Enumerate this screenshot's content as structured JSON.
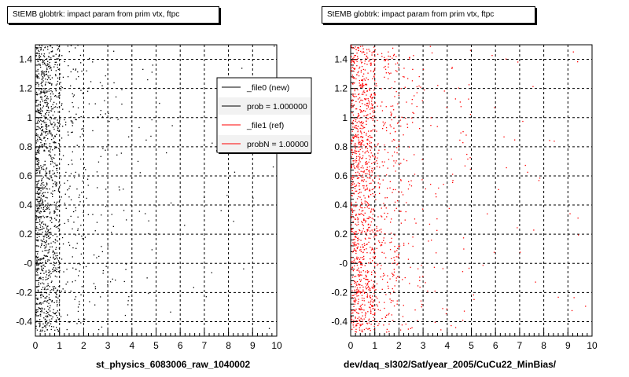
{
  "chart_data": [
    {
      "type": "scatter",
      "title": "StEMB globtrk: impact param from prim vtx, ftpc",
      "xlabel": "st_physics_6083006_raw_1040002",
      "ylabel": "",
      "xlim": [
        0,
        10
      ],
      "ylim": [
        -0.5,
        1.5
      ],
      "xticks": [
        "0",
        "1",
        "2",
        "3",
        "4",
        "5",
        "6",
        "7",
        "8",
        "9",
        "10"
      ],
      "yticks": [
        "-0.4",
        "-0.2",
        "-0",
        "0.2",
        "0.4",
        "0.6",
        "0.8",
        "1",
        "1.2",
        "1.4"
      ],
      "grid": true,
      "marker_color": "#000000",
      "density_profile": [
        {
          "x_range": [
            0,
            0.5
          ],
          "weight": 46
        },
        {
          "x_range": [
            0.5,
            1
          ],
          "weight": 30
        },
        {
          "x_range": [
            1,
            2
          ],
          "weight": 12
        },
        {
          "x_range": [
            2,
            3
          ],
          "weight": 5
        },
        {
          "x_range": [
            3,
            5
          ],
          "weight": 3
        },
        {
          "x_range": [
            5,
            10
          ],
          "weight": 1.5
        }
      ],
      "approx_points": 1400,
      "legend": {
        "placement": "top-right",
        "entries": [
          {
            "label": "_file0 (new)",
            "color": "#000000"
          },
          {
            "label": "prob = 1.000000",
            "color": "#000000"
          },
          {
            "label": "_file1 (ref)",
            "color": "#ff0000"
          },
          {
            "label": "probN = 1.000000",
            "color": "#ff0000"
          }
        ]
      }
    },
    {
      "type": "scatter",
      "title": "StEMB globtrk: impact param from prim vtx, ftpc",
      "xlabel": "dev/daq_sl302/Sat/year_2005/CuCu22_MinBias/",
      "ylabel": "",
      "xlim": [
        0,
        10
      ],
      "ylim": [
        -0.5,
        1.5
      ],
      "xticks": [
        "0",
        "1",
        "2",
        "3",
        "4",
        "5",
        "6",
        "7",
        "8",
        "9",
        "10"
      ],
      "yticks": [
        "-0.4",
        "-0.2",
        "-0",
        "0.2",
        "0.4",
        "0.6",
        "0.8",
        "1",
        "1.2",
        "1.4"
      ],
      "grid": true,
      "marker_color": "#ff0000",
      "density_profile": [
        {
          "x_range": [
            0,
            0.5
          ],
          "weight": 40
        },
        {
          "x_range": [
            0.5,
            1
          ],
          "weight": 30
        },
        {
          "x_range": [
            1,
            2
          ],
          "weight": 15
        },
        {
          "x_range": [
            2,
            3
          ],
          "weight": 7
        },
        {
          "x_range": [
            3,
            5
          ],
          "weight": 4
        },
        {
          "x_range": [
            5,
            10
          ],
          "weight": 2
        }
      ],
      "approx_points": 1500
    }
  ]
}
